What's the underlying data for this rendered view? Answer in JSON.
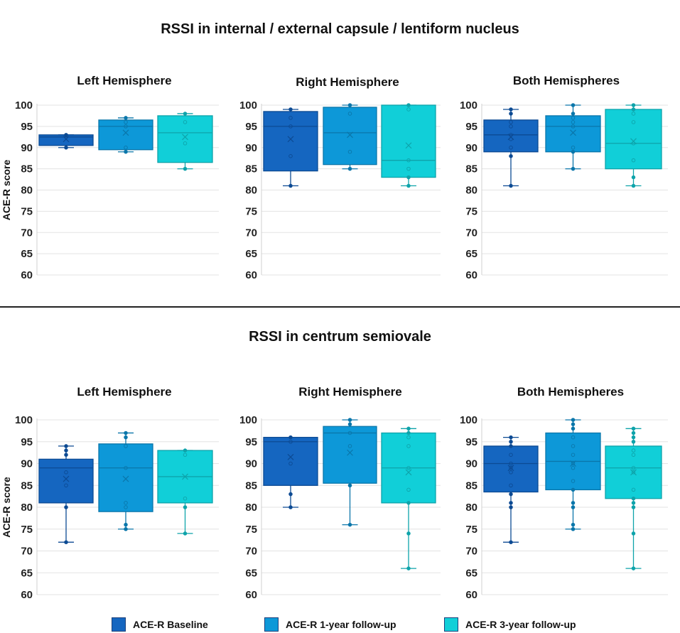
{
  "chart_data": {
    "type": "boxplot",
    "y_axis_label": "ACE-R score",
    "y_ticks": [
      60,
      65,
      70,
      75,
      80,
      85,
      90,
      95,
      100
    ],
    "legend": [
      {
        "name": "ACE-R Baseline",
        "color": "#1566c0"
      },
      {
        "name": "ACE-R 1-year follow-up",
        "color": "#0d98d8"
      },
      {
        "name": "ACE-R 3-year follow-up",
        "color": "#11cfd8"
      }
    ],
    "sections": [
      {
        "title": "RSSI in internal / external capsule / lentiform nucleus",
        "panels": [
          {
            "title": "Left Hemisphere",
            "ylim": [
              60,
              100
            ],
            "boxes": [
              {
                "series": "ACE-R Baseline",
                "min": 90,
                "q1": 90.5,
                "median": 92.5,
                "q3": 93,
                "max": 93,
                "mean": 92,
                "points": [
                  90,
                  92.5,
                  93
                ]
              },
              {
                "series": "ACE-R 1-year follow-up",
                "min": 89,
                "q1": 89.5,
                "median": 95,
                "q3": 96.5,
                "max": 97,
                "mean": 93.5,
                "points": [
                  89,
                  90,
                  95,
                  96,
                  97
                ]
              },
              {
                "series": "ACE-R 3-year follow-up",
                "min": 85,
                "q1": 86.5,
                "median": 93.5,
                "q3": 97.5,
                "max": 98,
                "mean": 92.5,
                "points": [
                  85,
                  91,
                  96,
                  98
                ]
              }
            ]
          },
          {
            "title": "Right Hemisphere",
            "ylim": [
              60,
              100
            ],
            "boxes": [
              {
                "series": "ACE-R Baseline",
                "min": 81,
                "q1": 84.5,
                "median": 95,
                "q3": 98.5,
                "max": 99,
                "mean": 92,
                "points": [
                  81,
                  88,
                  95,
                  97,
                  99
                ]
              },
              {
                "series": "ACE-R 1-year follow-up",
                "min": 85,
                "q1": 86,
                "median": 93.5,
                "q3": 99.5,
                "max": 100,
                "mean": 93,
                "points": [
                  85,
                  89,
                  98,
                  100
                ]
              },
              {
                "series": "ACE-R 3-year follow-up",
                "min": 81,
                "q1": 83,
                "median": 87,
                "q3": 100,
                "max": 100,
                "mean": 90.5,
                "points": [
                  81,
                  83,
                  85,
                  87,
                  99,
                  100
                ]
              }
            ]
          },
          {
            "title": "Both Hemispheres",
            "ylim": [
              60,
              100
            ],
            "boxes": [
              {
                "series": "ACE-R Baseline",
                "min": 81,
                "q1": 89,
                "median": 93,
                "q3": 96.5,
                "max": 99,
                "mean": 92.5,
                "points": [
                  81,
                  88,
                  90,
                  92,
                  93,
                  95,
                  96,
                  98,
                  99
                ]
              },
              {
                "series": "ACE-R 1-year follow-up",
                "min": 85,
                "q1": 89,
                "median": 95,
                "q3": 97.5,
                "max": 100,
                "mean": 93.5,
                "points": [
                  85,
                  89,
                  90,
                  95,
                  96,
                  97,
                  98,
                  100
                ]
              },
              {
                "series": "ACE-R 3-year follow-up",
                "min": 81,
                "q1": 85,
                "median": 91,
                "q3": 99,
                "max": 100,
                "mean": 91.5,
                "points": [
                  81,
                  83,
                  87,
                  91,
                  96,
                  98,
                  99,
                  100
                ]
              }
            ]
          }
        ]
      },
      {
        "title": "RSSI in centrum semiovale",
        "panels": [
          {
            "title": "Left Hemisphere",
            "ylim": [
              60,
              100
            ],
            "boxes": [
              {
                "series": "ACE-R Baseline",
                "min": 72,
                "q1": 81,
                "median": 89,
                "q3": 91,
                "max": 94,
                "mean": 86.5,
                "points": [
                  72,
                  80,
                  85,
                  88,
                  92,
                  93,
                  94
                ]
              },
              {
                "series": "ACE-R 1-year follow-up",
                "min": 75,
                "q1": 79,
                "median": 89,
                "q3": 94.5,
                "max": 97,
                "mean": 86.5,
                "points": [
                  75,
                  76,
                  80,
                  81,
                  89,
                  94,
                  96,
                  97
                ]
              },
              {
                "series": "ACE-R 3-year follow-up",
                "min": 74,
                "q1": 81,
                "median": 87,
                "q3": 93,
                "max": 93,
                "mean": 87,
                "points": [
                  74,
                  80,
                  82,
                  92,
                  93
                ]
              }
            ]
          },
          {
            "title": "Right Hemisphere",
            "ylim": [
              60,
              100
            ],
            "boxes": [
              {
                "series": "ACE-R Baseline",
                "min": 80,
                "q1": 85,
                "median": 95,
                "q3": 96,
                "max": 96,
                "mean": 91.5,
                "points": [
                  80,
                  83,
                  90,
                  95,
                  96
                ]
              },
              {
                "series": "ACE-R 1-year follow-up",
                "min": 76,
                "q1": 85.5,
                "median": 97,
                "q3": 98.5,
                "max": 100,
                "mean": 92.5,
                "points": [
                  76,
                  85,
                  94,
                  97,
                  99,
                  100
                ]
              },
              {
                "series": "ACE-R 3-year follow-up",
                "min": 66,
                "q1": 81,
                "median": 89,
                "q3": 97,
                "max": 98,
                "mean": 88,
                "points": [
                  66,
                  74,
                  81,
                  84,
                  89,
                  94,
                  96,
                  97,
                  98
                ]
              }
            ]
          },
          {
            "title": "Both Hemispheres",
            "ylim": [
              60,
              100
            ],
            "boxes": [
              {
                "series": "ACE-R Baseline",
                "min": 72,
                "q1": 83.5,
                "median": 90,
                "q3": 94,
                "max": 96,
                "mean": 89,
                "points": [
                  72,
                  80,
                  81,
                  83,
                  85,
                  88,
                  89,
                  90,
                  92,
                  94,
                  95,
                  96
                ]
              },
              {
                "series": "ACE-R 1-year follow-up",
                "min": 75,
                "q1": 84,
                "median": 90.5,
                "q3": 97,
                "max": 100,
                "mean": 90,
                "points": [
                  75,
                  76,
                  80,
                  81,
                  84,
                  86,
                  89,
                  90,
                  92,
                  94,
                  96,
                  98,
                  99,
                  100
                ]
              },
              {
                "series": "ACE-R 3-year follow-up",
                "min": 66,
                "q1": 82,
                "median": 89,
                "q3": 94,
                "max": 98,
                "mean": 88,
                "points": [
                  66,
                  74,
                  80,
                  81,
                  82,
                  84,
                  88,
                  89,
                  92,
                  93,
                  95,
                  96,
                  97,
                  98
                ]
              }
            ]
          }
        ]
      }
    ]
  }
}
